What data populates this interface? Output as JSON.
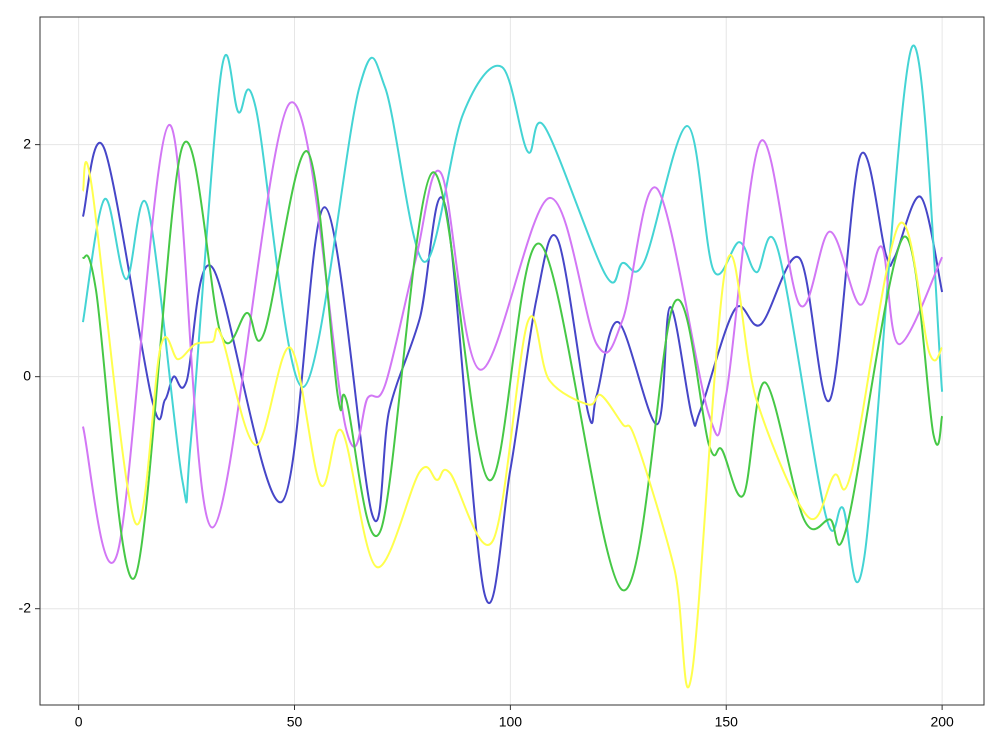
{
  "chart_data": {
    "type": "line",
    "xlim": [
      -8.95,
      209.7
    ],
    "ylim": [
      -2.83,
      3.1
    ],
    "xticks": [
      0,
      50,
      100,
      150,
      200
    ],
    "yticks": [
      -2,
      0,
      2
    ],
    "grid": true,
    "series": [
      {
        "color": "#4646c8",
        "x": [
          1,
          6,
          17,
          20,
          22,
          25,
          31,
          47,
          57,
          68,
          72,
          79,
          85,
          94,
          100,
          106,
          111,
          118,
          120,
          125,
          134,
          137,
          142,
          144,
          152,
          158,
          167,
          174,
          181,
          187,
          189,
          195,
          200
        ],
        "values": [
          1.38,
          1.96,
          -0.2,
          -0.2,
          0,
          -0.04,
          0.94,
          -1.08,
          1.46,
          -1.19,
          -0.28,
          0.5,
          1.46,
          -1.87,
          -0.8,
          0.66,
          1.18,
          -0.31,
          -0.16,
          0.47,
          -0.41,
          0.6,
          -0.33,
          -0.29,
          0.58,
          0.45,
          1.02,
          -0.2,
          1.9,
          1.05,
          1.03,
          1.55,
          0.73
        ]
      },
      {
        "color": "#44d4d4",
        "x": [
          1,
          6,
          11,
          16,
          24,
          26,
          33,
          37,
          41,
          52,
          65,
          71,
          80,
          89,
          98,
          104,
          108,
          122,
          126,
          131,
          141,
          147,
          153,
          157,
          162,
          173,
          177,
          182,
          193,
          200
        ],
        "values": [
          0.47,
          1.53,
          0.84,
          1.46,
          -0.89,
          -0.55,
          2.62,
          2.28,
          2.32,
          -0.09,
          2.49,
          2.49,
          0.99,
          2.26,
          2.67,
          1.94,
          2.15,
          0.88,
          0.98,
          0.99,
          2.16,
          0.92,
          1.16,
          0.9,
          1.09,
          -1.19,
          -1.13,
          -1.55,
          2.84,
          -0.13
        ]
      },
      {
        "color": "#d277f5",
        "x": [
          1,
          9,
          21,
          31,
          49,
          62,
          67,
          71,
          78,
          84,
          93,
          109,
          120,
          126,
          134,
          146,
          150,
          158,
          167,
          174,
          181,
          186,
          190,
          200
        ],
        "values": [
          -0.43,
          -1.52,
          2.17,
          -1.3,
          2.36,
          -0.46,
          -0.18,
          -0.07,
          1.0,
          1.75,
          0.06,
          1.54,
          0.28,
          0.49,
          1.62,
          -0.33,
          -0.15,
          2.03,
          0.62,
          1.25,
          0.62,
          1.12,
          0.28,
          1.03
        ]
      },
      {
        "color": "#46c846",
        "x": [
          1,
          4,
          13,
          24,
          33,
          39,
          43,
          53,
          60,
          62,
          70,
          82,
          95,
          107,
          126,
          138,
          146,
          149,
          154,
          159,
          168,
          174,
          178,
          191,
          198,
          200
        ],
        "values": [
          1.03,
          0.75,
          -1.73,
          1.98,
          0.36,
          0.55,
          0.38,
          1.94,
          -0.16,
          -0.2,
          -1.32,
          1.76,
          -0.89,
          1.14,
          -1.84,
          0.64,
          -0.59,
          -0.63,
          -1.02,
          -0.05,
          -1.23,
          -1.23,
          -1.28,
          1.2,
          -0.5,
          -0.34
        ]
      },
      {
        "color": "#ffff4d",
        "x": [
          1,
          3,
          13,
          19,
          23,
          27,
          31,
          33,
          41,
          49,
          56,
          61,
          69,
          79,
          83,
          86,
          96,
          104,
          109,
          118,
          121,
          126,
          129,
          138,
          142,
          150,
          157,
          169,
          175,
          179,
          190,
          197,
          200
        ],
        "values": [
          1.6,
          1.65,
          -1.25,
          0.26,
          0.15,
          0.28,
          0.3,
          0.36,
          -0.59,
          0.25,
          -0.93,
          -0.47,
          -1.64,
          -0.82,
          -0.89,
          -0.83,
          -1.41,
          0.47,
          -0.03,
          -0.24,
          -0.16,
          -0.41,
          -0.54,
          -1.66,
          -2.57,
          0.97,
          -0.2,
          -1.21,
          -0.85,
          -0.82,
          1.31,
          0.21,
          0.25
        ]
      }
    ]
  }
}
